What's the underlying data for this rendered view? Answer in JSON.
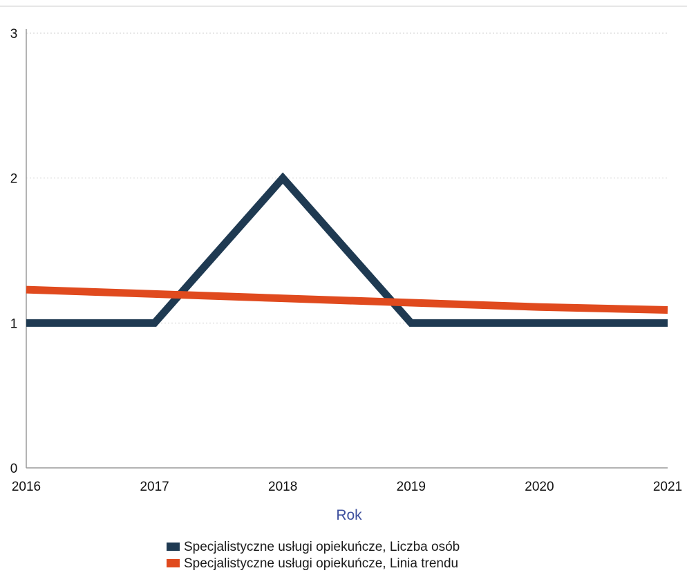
{
  "chart_data": {
    "type": "line",
    "title": "",
    "xlabel": "Rok",
    "ylabel": "",
    "x": [
      2016,
      2017,
      2018,
      2019,
      2020,
      2021
    ],
    "xlim": [
      2016,
      2021
    ],
    "ylim": [
      0,
      3
    ],
    "yticks": [
      0,
      1,
      2,
      3
    ],
    "grid": true,
    "legend_position": "bottom",
    "series": [
      {
        "name": "Specjalistyczne usługi opiekuńcze, Liczba osób",
        "values": [
          1,
          1,
          2,
          1,
          1,
          1
        ],
        "color": "#1f3a52"
      },
      {
        "name": "Specjalistyczne usługi opiekuńcze, Linia trendu",
        "values": [
          1.23,
          1.2,
          1.17,
          1.14,
          1.11,
          1.09
        ],
        "color": "#e04a1e"
      }
    ]
  }
}
